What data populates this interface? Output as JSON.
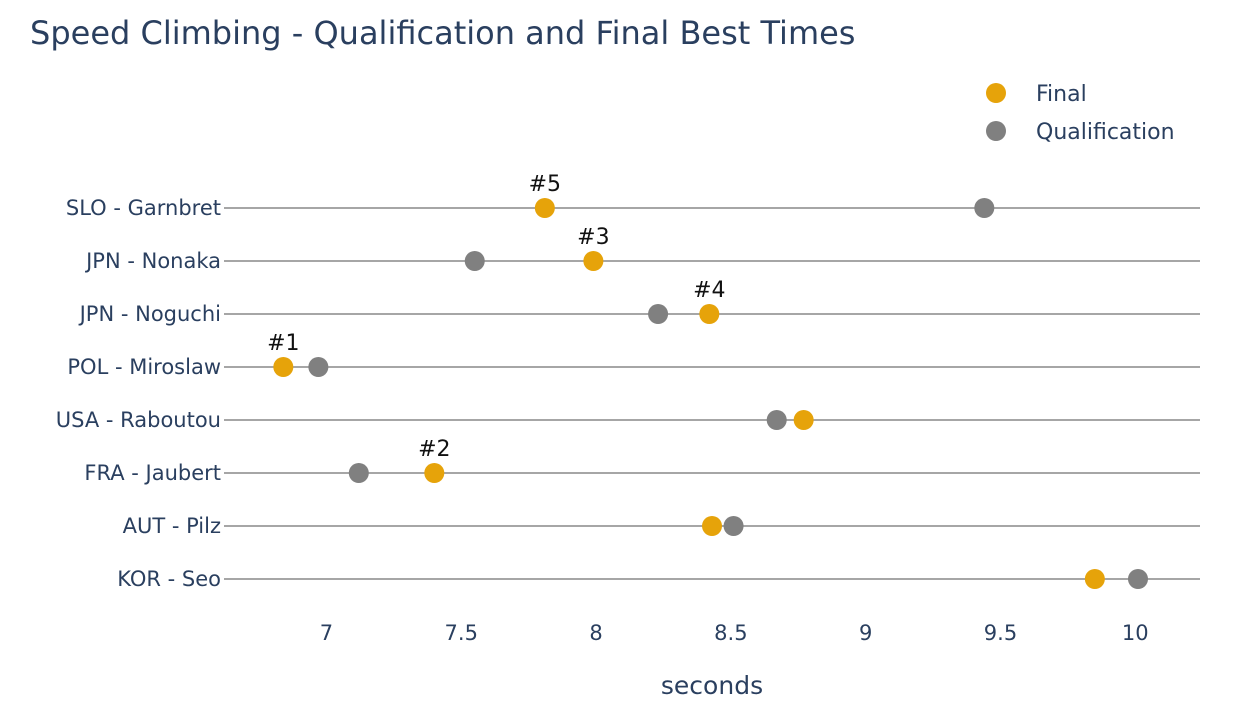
{
  "chart_data": {
    "type": "scatter",
    "title": "Speed Climbing - Qualification and Final Best Times",
    "xlabel": "seconds",
    "ylabel": "",
    "xlim": [
      6.62,
      10.24
    ],
    "xticks": [
      7,
      7.5,
      8,
      8.5,
      9,
      9.5,
      10
    ],
    "xtick_labels": [
      "7",
      "7.5",
      "8",
      "8.5",
      "9",
      "9.5",
      "10"
    ],
    "grid": "horizontal lines per category",
    "legend_position": "top-right",
    "categories": [
      "SLO - Garnbret",
      "JPN - Nonaka",
      "JPN - Noguchi",
      "POL - Miroslaw",
      "USA - Raboutou",
      "FRA - Jaubert",
      "AUT - Pilz",
      "KOR - Seo"
    ],
    "series": [
      {
        "name": "Final",
        "color": "#e6a30a",
        "values": [
          7.81,
          7.99,
          8.42,
          6.84,
          8.77,
          7.4,
          8.43,
          9.85
        ],
        "labels": [
          "#5",
          "#3",
          "#4",
          "#1",
          "",
          "#2",
          "",
          ""
        ]
      },
      {
        "name": "Qualification",
        "color": "#808080",
        "values": [
          9.44,
          7.55,
          8.23,
          6.97,
          8.67,
          7.12,
          8.51,
          10.01
        ]
      }
    ]
  }
}
